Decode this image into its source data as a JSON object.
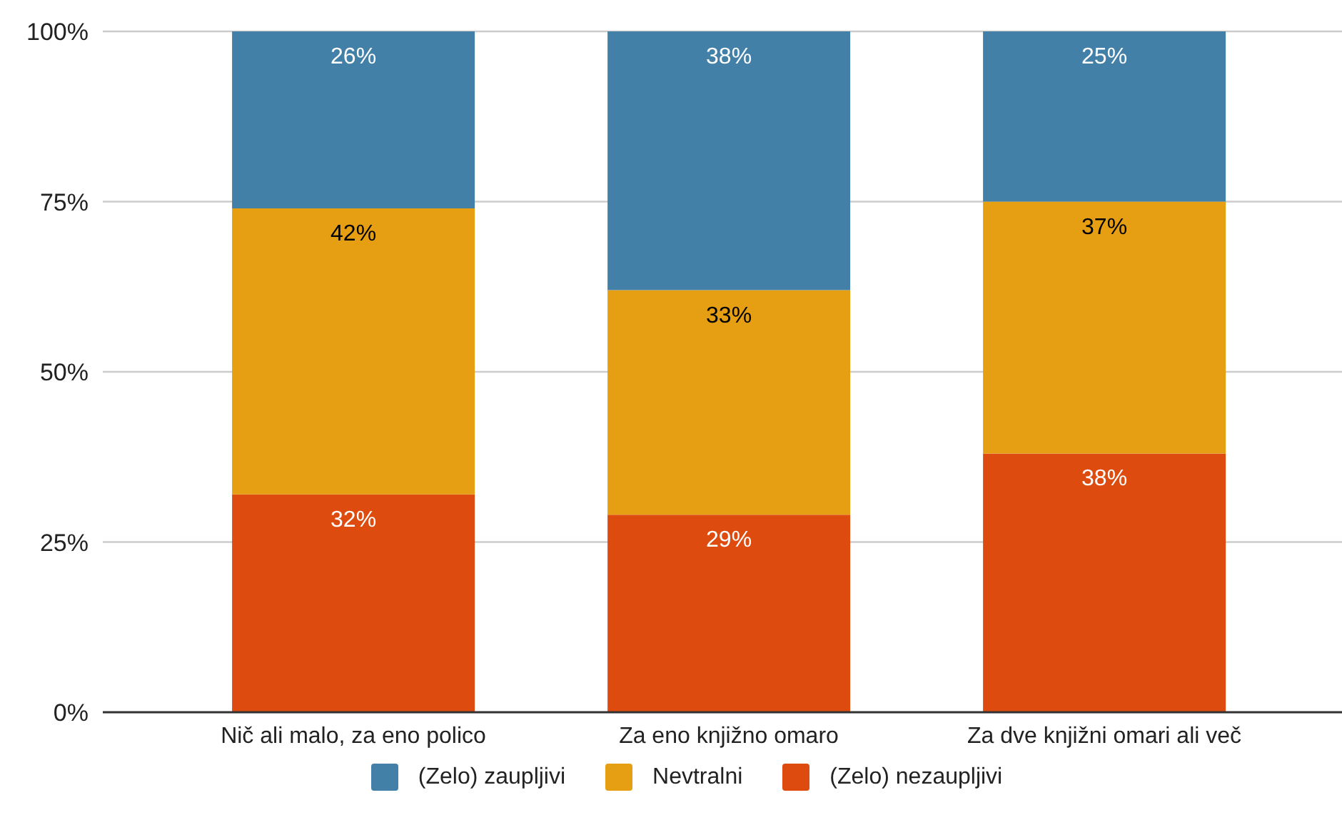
{
  "chart_data": {
    "type": "bar",
    "stacked": true,
    "categories": [
      "Nič ali malo, za eno polico",
      "Za eno knjižno omaro",
      "Za dve knjižni omari ali več"
    ],
    "series": [
      {
        "name": "(Zelo) nezaupljivi",
        "color": "#de4b0e",
        "values": [
          32,
          29,
          38
        ],
        "value_labels": [
          "32%",
          "29%",
          "38%"
        ]
      },
      {
        "name": "Nevtralni",
        "color": "#e69f12",
        "values": [
          42,
          33,
          37
        ],
        "value_labels": [
          "42%",
          "33%",
          "37%"
        ]
      },
      {
        "name": "(Zelo) zaupljivi",
        "color": "#4380a8",
        "values": [
          26,
          38,
          25
        ],
        "value_labels": [
          "26%",
          "38%",
          "25%"
        ]
      }
    ],
    "ylim": [
      0,
      100
    ],
    "yticks": [
      {
        "value": 0,
        "label": "0%"
      },
      {
        "value": 25,
        "label": "25%"
      },
      {
        "value": 50,
        "label": "50%"
      },
      {
        "value": 75,
        "label": "75%"
      },
      {
        "value": 100,
        "label": "100%"
      }
    ],
    "grid": "y",
    "legend": "bottom"
  }
}
